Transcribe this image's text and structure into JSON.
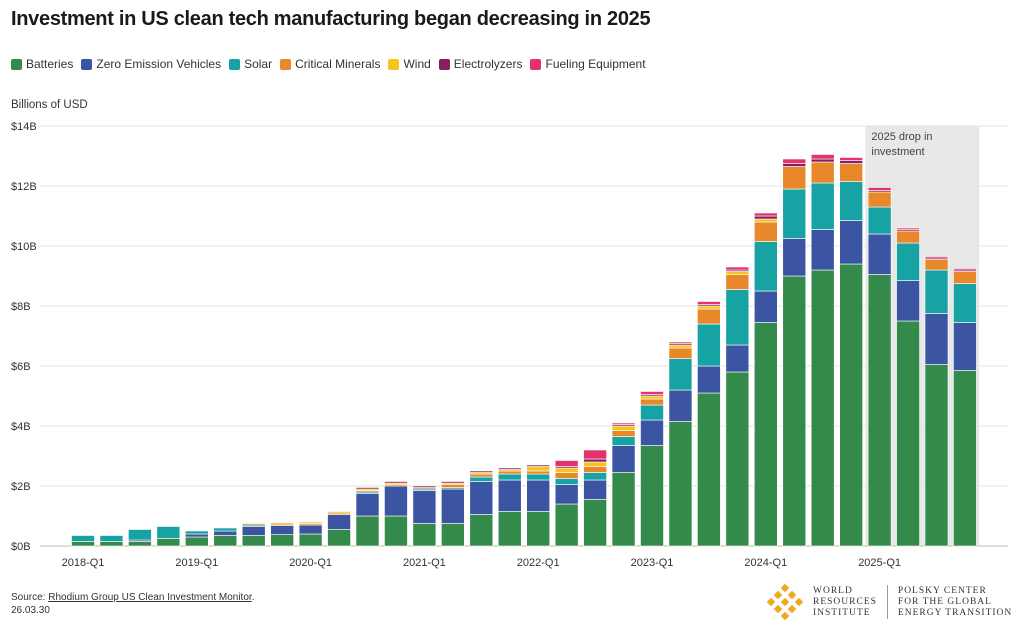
{
  "title": "Investment in US clean tech manufacturing began decreasing in 2025",
  "y_axis_label": "Billions of USD",
  "annotation": [
    "2025 drop in",
    "investment"
  ],
  "source_prefix": "Source: ",
  "source_link": "Rhodium Group US Clean Investment Monitor",
  "source_suffix": ".",
  "date_stamp": "26.03.30",
  "logo_wri": [
    "WORLD",
    "RESOURCES",
    "INSTITUTE"
  ],
  "logo_polsky": [
    "POLSKY CENTER",
    "FOR THE GLOBAL",
    "ENERGY TRANSITION"
  ],
  "colors": {
    "Batteries": "#348a4b",
    "Zero Emission Vehicles": "#3b55a2",
    "Solar": "#17a2a3",
    "Critical Minerals": "#e8882a",
    "Wind": "#f5c51e",
    "Electrolyzers": "#8a1e63",
    "Fueling Equipment": "#e4336c",
    "shade": "#e8e8e8",
    "grid": "#e3e3e3",
    "logo_gold": "#f0a81c"
  },
  "chart_data": {
    "type": "bar",
    "stacked": true,
    "ylim": [
      0,
      14
    ],
    "yticks": [
      "$0B",
      "$2B",
      "$4B",
      "$6B",
      "$8B",
      "$10B",
      "$12B",
      "$14B"
    ],
    "ylabel": "Billions of USD",
    "x_tick_labels": [
      {
        "index": 0,
        "label": "2018-Q1"
      },
      {
        "index": 4,
        "label": "2019-Q1"
      },
      {
        "index": 8,
        "label": "2020-Q1"
      },
      {
        "index": 12,
        "label": "2021-Q1"
      },
      {
        "index": 16,
        "label": "2022-Q1"
      },
      {
        "index": 20,
        "label": "2023-Q1"
      },
      {
        "index": 24,
        "label": "2024-Q1"
      },
      {
        "index": 28,
        "label": "2025-Q1"
      }
    ],
    "categories": [
      "2018-Q1",
      "2018-Q2",
      "2018-Q3",
      "2018-Q4",
      "2019-Q1",
      "2019-Q2",
      "2019-Q3",
      "2019-Q4",
      "2020-Q1",
      "2020-Q2",
      "2020-Q3",
      "2020-Q4",
      "2021-Q1",
      "2021-Q2",
      "2021-Q3",
      "2021-Q4",
      "2022-Q1",
      "2022-Q2",
      "2022-Q3",
      "2022-Q4",
      "2023-Q1",
      "2023-Q2",
      "2023-Q3",
      "2023-Q4",
      "2024-Q1",
      "2024-Q2",
      "2024-Q3",
      "2024-Q4",
      "2025-Q1",
      "2025-Q2",
      "2025-Q3",
      "2025-Q4"
    ],
    "highlight_start_index": 28,
    "series": [
      {
        "name": "Batteries",
        "values": [
          0.15,
          0.15,
          0.15,
          0.25,
          0.3,
          0.35,
          0.35,
          0.38,
          0.4,
          0.55,
          1.0,
          1.0,
          0.75,
          0.75,
          1.05,
          1.15,
          1.15,
          1.4,
          1.55,
          2.45,
          3.35,
          4.15,
          5.1,
          5.8,
          7.45,
          9.0,
          9.2,
          9.4,
          9.05,
          7.5,
          6.05,
          5.85
        ]
      },
      {
        "name": "Zero Emission Vehicles",
        "values": [
          0,
          0,
          0.05,
          0,
          0.1,
          0.15,
          0.3,
          0.3,
          0.3,
          0.5,
          0.75,
          1.0,
          1.1,
          1.15,
          1.1,
          1.05,
          1.05,
          0.65,
          0.65,
          0.9,
          0.85,
          1.05,
          0.9,
          0.9,
          1.05,
          1.25,
          1.35,
          1.45,
          1.35,
          1.35,
          1.7,
          1.6
        ]
      },
      {
        "name": "Solar",
        "values": [
          0.2,
          0.2,
          0.35,
          0.4,
          0.1,
          0.1,
          0.05,
          0.0,
          0.0,
          0.0,
          0.05,
          0.0,
          0.05,
          0.05,
          0.15,
          0.2,
          0.2,
          0.2,
          0.25,
          0.3,
          0.5,
          1.05,
          1.4,
          1.85,
          1.65,
          1.65,
          1.55,
          1.3,
          0.9,
          1.25,
          1.45,
          1.3
        ]
      },
      {
        "name": "Critical Minerals",
        "values": [
          0,
          0,
          0,
          0,
          0,
          0,
          0.05,
          0.05,
          0.05,
          0.05,
          0.05,
          0.05,
          0.05,
          0.1,
          0.1,
          0.1,
          0.1,
          0.2,
          0.2,
          0.2,
          0.2,
          0.35,
          0.5,
          0.5,
          0.65,
          0.75,
          0.7,
          0.6,
          0.5,
          0.4,
          0.35,
          0.4
        ]
      },
      {
        "name": "Wind",
        "values": [
          0,
          0,
          0,
          0,
          0,
          0,
          0,
          0.05,
          0.05,
          0.05,
          0.05,
          0.05,
          0.0,
          0.05,
          0.05,
          0.05,
          0.15,
          0.15,
          0.15,
          0.15,
          0.1,
          0.1,
          0.1,
          0.1,
          0.1,
          0.0,
          0.0,
          0.0,
          0.0,
          0.0,
          0.0,
          0.0
        ]
      },
      {
        "name": "Electrolyzers",
        "values": [
          0,
          0,
          0,
          0,
          0,
          0,
          0,
          0,
          0,
          0,
          0.05,
          0.05,
          0.05,
          0.05,
          0.05,
          0.05,
          0.05,
          0.05,
          0.1,
          0.05,
          0.05,
          0.05,
          0.05,
          0.05,
          0.1,
          0.1,
          0.1,
          0.1,
          0.05,
          0.05,
          0.05,
          0.05
        ]
      },
      {
        "name": "Fueling Equipment",
        "values": [
          0,
          0,
          0,
          0,
          0,
          0,
          0,
          0,
          0,
          0,
          0,
          0,
          0,
          0,
          0,
          0,
          0,
          0.2,
          0.3,
          0.05,
          0.1,
          0.05,
          0.1,
          0.1,
          0.1,
          0.15,
          0.15,
          0.1,
          0.1,
          0.05,
          0.05,
          0.05
        ]
      }
    ]
  }
}
